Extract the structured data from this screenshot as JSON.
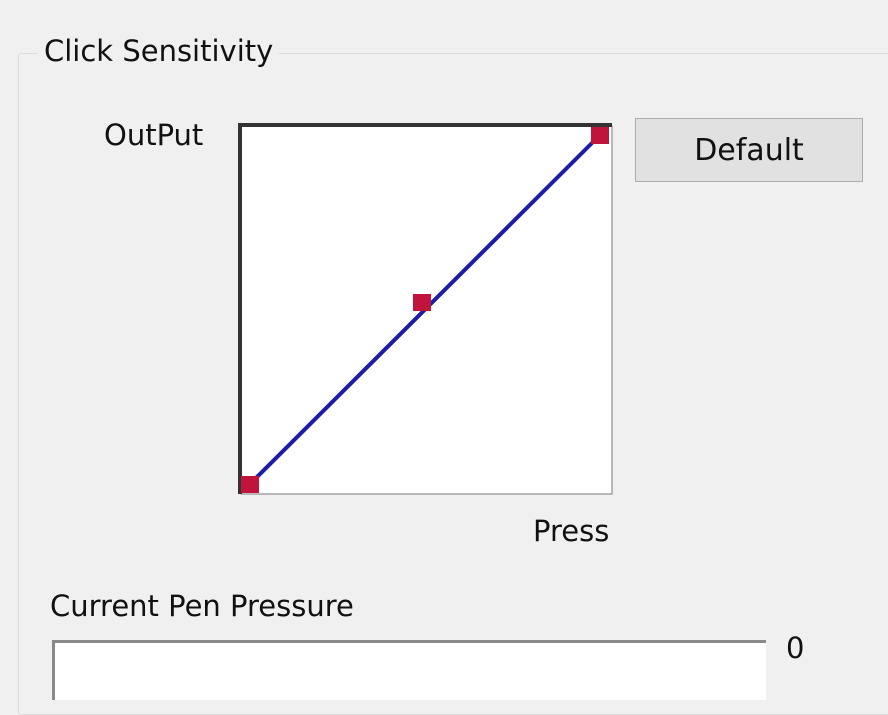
{
  "group": {
    "title": "Click Sensitivity"
  },
  "curve": {
    "y_label": "OutPut",
    "x_label": "Press"
  },
  "button": {
    "label": "Default"
  },
  "pressure": {
    "label": "Current Pen Pressure",
    "value": 0
  }
}
